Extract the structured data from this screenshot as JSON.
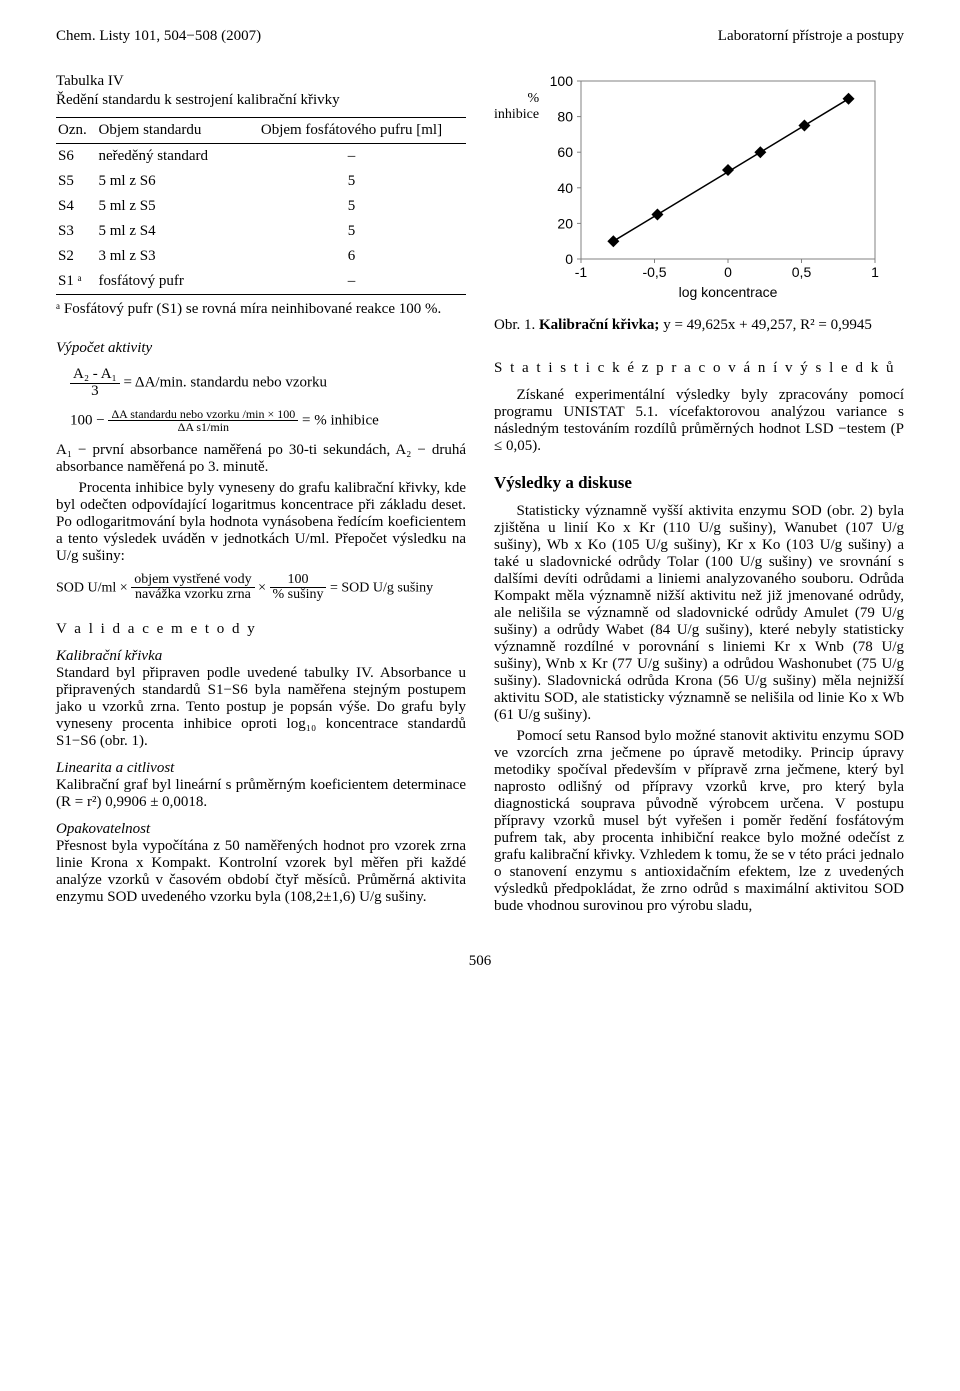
{
  "header": {
    "left": "Chem. Listy 101, 504−508 (2007)",
    "right": "Laboratorní přístroje a postupy"
  },
  "table4": {
    "title": "Tabulka IV",
    "subtitle": "Ředění standardu k sestrojení kalibrační křivky",
    "cols": [
      "Ozn.",
      "Objem standardu",
      "Objem fosfátového pufru [ml]"
    ],
    "rows": [
      [
        "S6",
        "neředěný standard",
        "–"
      ],
      [
        "S5",
        "5 ml z S6",
        "5"
      ],
      [
        "S4",
        "5 ml z S5",
        "5"
      ],
      [
        "S3",
        "5 ml z S4",
        "5"
      ],
      [
        "S2",
        "3 ml z S3",
        "6"
      ],
      [
        "S1 ᵃ",
        "fosfátový pufr",
        "–"
      ]
    ],
    "footnote": "ᵃ Fosfátový pufr (S1) se rovná míra neinhibované reakce 100 %."
  },
  "chart": {
    "type": "scatter-line",
    "ylabel_lines": [
      "%",
      "inhibice"
    ],
    "xlabel": "log koncentrace",
    "xlim": [
      -1,
      1
    ],
    "ylim": [
      0,
      100
    ],
    "xticks": [
      -1,
      -0.5,
      0,
      0.5,
      1
    ],
    "yticks": [
      0,
      20,
      40,
      60,
      80,
      100
    ],
    "points": [
      {
        "x": -0.78,
        "y": 10
      },
      {
        "x": -0.48,
        "y": 25
      },
      {
        "x": 0.0,
        "y": 50
      },
      {
        "x": 0.22,
        "y": 60
      },
      {
        "x": 0.52,
        "y": 75
      },
      {
        "x": 0.82,
        "y": 90
      }
    ],
    "line_color": "#000000",
    "marker_color": "#000000",
    "marker_size": 6,
    "border_color": "#808080",
    "tick_color": "#808080",
    "background_color": "#ffffff",
    "axis_font_size": 14
  },
  "fig1_caption_prefix": "Obr. 1. ",
  "fig1_caption_bold": "Kalibrační křivka;",
  "fig1_caption_rest": " y = 49,625x + 49,257, R² = 0,9945",
  "left": {
    "sec_activity": "Výpočet aktivity",
    "eq1_desc": "= ΔA/min. standardu nebo vzorku",
    "eq1_num": "A₂ - A₁",
    "eq1_den": "3",
    "eq2_left": "100 −",
    "eq2_num": "ΔA standardu nebo vzorku /min × 100",
    "eq2_den": "ΔA s1/min",
    "eq2_right": "=  % inhibice",
    "p_a1": "A₁ − první absorbance naměřená po 30-ti sekundách, A₂ − druhá absorbance naměřená po 3. minutě.",
    "p_percent": "Procenta inhibice byly vyneseny do grafu kalibrační křivky, kde byl odečten odpovídající logaritmus koncentrace při základu deset. Po odlogaritmování byla hodnota vynásobena ředícím koeficientem a tento výsledek uváděn v jednotkách U/ml. Přepočet výsledku na U/g sušiny:",
    "eq3_left": "SOD U/ml ×",
    "eq3_num1": "objem vystřené vody",
    "eq3_den1": "navážka vzorku zrna",
    "eq3_mid": "×",
    "eq3_num2": "100",
    "eq3_den2": "% sušiny",
    "eq3_right": "= SOD U/g sušiny",
    "sec_validace": "V a l i d a c e   m e t o d y",
    "h_kalib": "Kalibrační křivka",
    "p_kalib": "Standard byl připraven podle uvedené tabulky IV. Absorbance u připravených standardů S1−S6 byla naměřena stejným postupem jako u vzorků zrna. Tento postup je popsán výše. Do grafu byly vyneseny procenta inhibice oproti log₁₀ koncentrace standardů S1−S6 (obr. 1).",
    "h_lin": "Linearita a citlivost",
    "p_lin": "Kalibrační graf byl lineární s průměrným koeficientem determinace (R = r²) 0,9906 ± 0,0018.",
    "h_opak": "Opakovatelnost",
    "p_opak": "Přesnost byla vypočítána z 50 naměřených hodnot pro vzorek zrna linie Krona x Kompakt. Kontrolní vzorek byl měřen při každé analýze vzorků v časovém období čtyř měsíců. Průměrná aktivita enzymu SOD uvedeného vzorku byla (108,2±1,6) U/g sušiny."
  },
  "right": {
    "h_stat": "S t a t i s t i c k é   z p r a c o v á n í   v ý s l e d k ů",
    "p_stat": "Získané experimentální výsledky byly zpracovány pomocí programu UNISTAT 5.1. vícefaktorovou analýzou variance s následným testováním rozdílů průměrných hodnot LSD −testem (P ≤ 0,05).",
    "h_res": "Výsledky a diskuse",
    "p_res1": "Statisticky významně vyšší aktivita enzymu SOD (obr. 2) byla zjištěna u linií Ko x Kr (110 U/g sušiny), Wanubet (107 U/g sušiny), Wb x Ko (105 U/g sušiny), Kr x Ko (103 U/g sušiny) a také u sladovnické odrůdy Tolar (100 U/g sušiny) ve srovnání s dalšími devíti odrůdami a liniemi analyzovaného souboru. Odrůda Kompakt měla významně nižší aktivitu než již jmenované odrůdy, ale nelišila se významně od sladovnické odrůdy Amulet (79 U/g sušiny) a odrůdy Wabet (84 U/g sušiny), které nebyly statisticky významně rozdílné v porovnání s liniemi Kr x Wnb (78 U/g sušiny), Wnb x Kr (77 U/g sušiny) a odrůdou Washonubet (75 U/g sušiny). Sladovnická odrůda Krona (56 U/g sušiny) měla nejnižší aktivitu SOD, ale statisticky významně se nelišila od linie Ko x Wb (61 U/g sušiny).",
    "p_res2": "Pomocí setu Ransod bylo možné stanovit aktivitu enzymu SOD ve vzorcích zrna ječmene po úpravě metodiky. Princip úpravy metodiky spočíval především v přípravě zrna ječmene, který byl naprosto odlišný od přípravy vzorků krve, pro který byla diagnostická souprava původně výrobcem určena. V postupu přípravy vzorků musel být vyřešen i poměr ředění fosfátovým pufrem tak, aby procenta inhibiční reakce bylo možné odečíst z grafu kalibrační křivky. Vzhledem k tomu, že se v této práci jednalo o stanovení enzymu s antioxidačním efektem, lze z uvedených výsledků předpokládat, že zrno odrůd s maximální aktivitou SOD bude vhodnou surovinou pro výrobu sladu,"
  },
  "pagenum": "506"
}
